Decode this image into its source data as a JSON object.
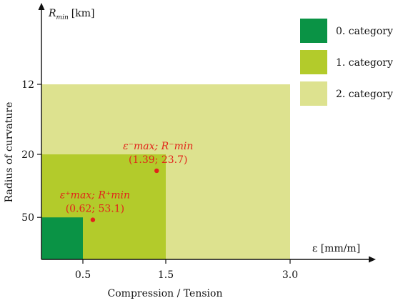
{
  "chart_data": {
    "type": "area",
    "x_axis": {
      "label": "ε [mm/m]",
      "caption": "Compression / Tension",
      "ticks": [
        0.5,
        1.5,
        3.0
      ],
      "tick_labels": [
        "0.5",
        "1.5",
        "3.0"
      ],
      "range": [
        0,
        3.9
      ]
    },
    "y_axis": {
      "label_main": "R",
      "label_sub": "min",
      "label_unit": "[km]",
      "caption": "Radius of curvature",
      "ticks": [
        12,
        20,
        50
      ],
      "tick_labels": [
        "12",
        "20",
        "50"
      ],
      "scale": "reciprocal",
      "note": "radius decreases upward"
    },
    "regions": [
      {
        "name": "0. category",
        "eps_max": 0.5,
        "r_min": 50,
        "color": "#0a9345"
      },
      {
        "name": "1. category",
        "eps_max": 1.5,
        "r_min": 20,
        "color": "#b3cb2b"
      },
      {
        "name": "2. category",
        "eps_max": 3.0,
        "r_min": 12,
        "color": "#dde28f"
      }
    ],
    "points": [
      {
        "x": 0.62,
        "y": 53.1,
        "label_top": "ε⁺max; R⁺min",
        "label_bottom": "(0.62; 53.1)"
      },
      {
        "x": 1.39,
        "y": 23.7,
        "label_top": "ε⁻max; R⁻min",
        "label_bottom": "(1.39; 23.7)"
      }
    ],
    "legend": {
      "placement": "top-right",
      "items": [
        {
          "label": "0. category",
          "color": "#0a9345"
        },
        {
          "label": "1. category",
          "color": "#b3cb2b"
        },
        {
          "label": "2. category",
          "color": "#dde28f"
        }
      ]
    },
    "grid": false
  }
}
